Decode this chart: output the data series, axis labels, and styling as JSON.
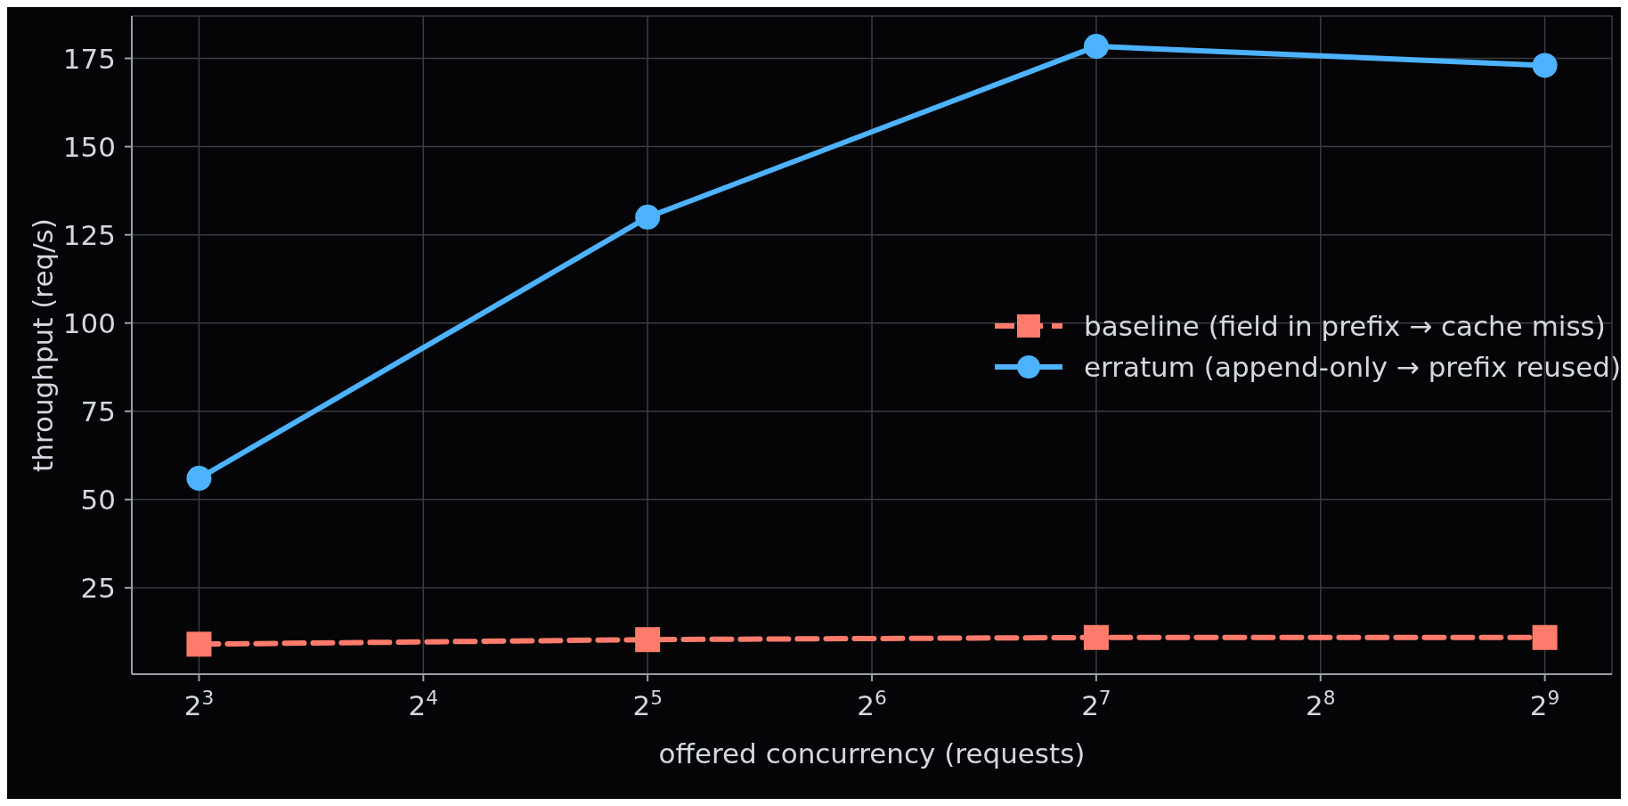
{
  "chart_data": {
    "type": "line",
    "xlabel": "offered concurrency (requests)",
    "ylabel": "throughput (req/s)",
    "log": "x",
    "x": [
      8,
      32,
      128,
      512
    ],
    "xlim": [
      6.5,
      630
    ],
    "xticks": [
      {
        "value": 8,
        "label": "2$^{3}$"
      },
      {
        "value": 16,
        "label": "2$^{4}$"
      },
      {
        "value": 32,
        "label": "2$^{5}$"
      },
      {
        "value": 64,
        "label": "2$^{6}$"
      },
      {
        "value": 128,
        "label": "2$^{7}$"
      },
      {
        "value": 256,
        "label": "2$^{8}$"
      },
      {
        "value": 512,
        "label": "2$^{9}$"
      }
    ],
    "ylim": [
      0.5,
      187
    ],
    "yticks": [
      25,
      50,
      75,
      100,
      125,
      150,
      175
    ],
    "grid": true,
    "legend": "center right",
    "series": [
      {
        "name": "baseline (field in prefix → cache miss)",
        "color": "#ff7b6b",
        "values": [
          9,
          10.3,
          10.9,
          10.9
        ],
        "marker": "square",
        "line_style": "dashed"
      },
      {
        "name": "erratum (append-only → prefix reused)",
        "color": "#4db2ff",
        "values": [
          56,
          130,
          178.4,
          173
        ],
        "marker": "circle",
        "line_style": "solid"
      }
    ]
  }
}
